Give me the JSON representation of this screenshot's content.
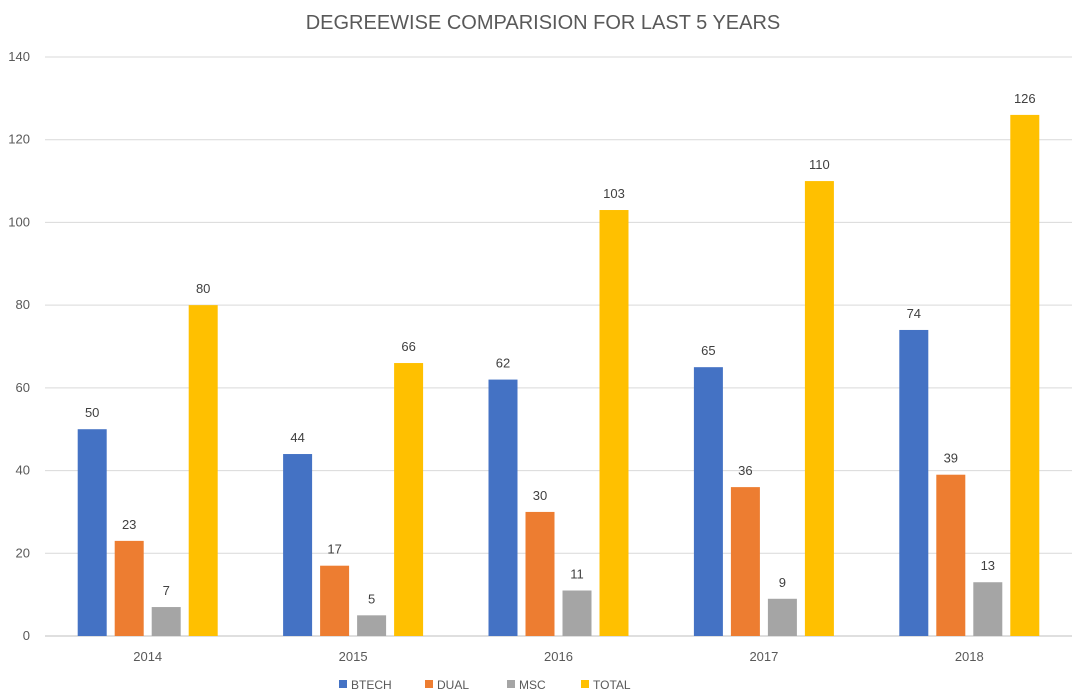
{
  "chart_data": {
    "type": "bar",
    "title": "DEGREEWISE COMPARISION FOR LAST 5 YEARS",
    "xlabel": "",
    "ylabel": "",
    "categories": [
      "2014",
      "2015",
      "2016",
      "2017",
      "2018"
    ],
    "series": [
      {
        "name": "BTECH",
        "color": "#4472c4",
        "values": [
          50,
          44,
          62,
          65,
          74
        ]
      },
      {
        "name": "DUAL",
        "color": "#ed7d31",
        "values": [
          23,
          17,
          30,
          36,
          39
        ]
      },
      {
        "name": "MSC",
        "color": "#a5a5a5",
        "values": [
          7,
          5,
          11,
          9,
          13
        ]
      },
      {
        "name": "TOTAL",
        "color": "#ffc000",
        "values": [
          80,
          66,
          103,
          110,
          126
        ]
      }
    ],
    "ylim": [
      0,
      140
    ],
    "yticks": [
      "0",
      "20",
      "40",
      "60",
      "80",
      "100",
      "120",
      "140"
    ],
    "grid": true,
    "legend_position": "bottom",
    "data_labels": true
  }
}
